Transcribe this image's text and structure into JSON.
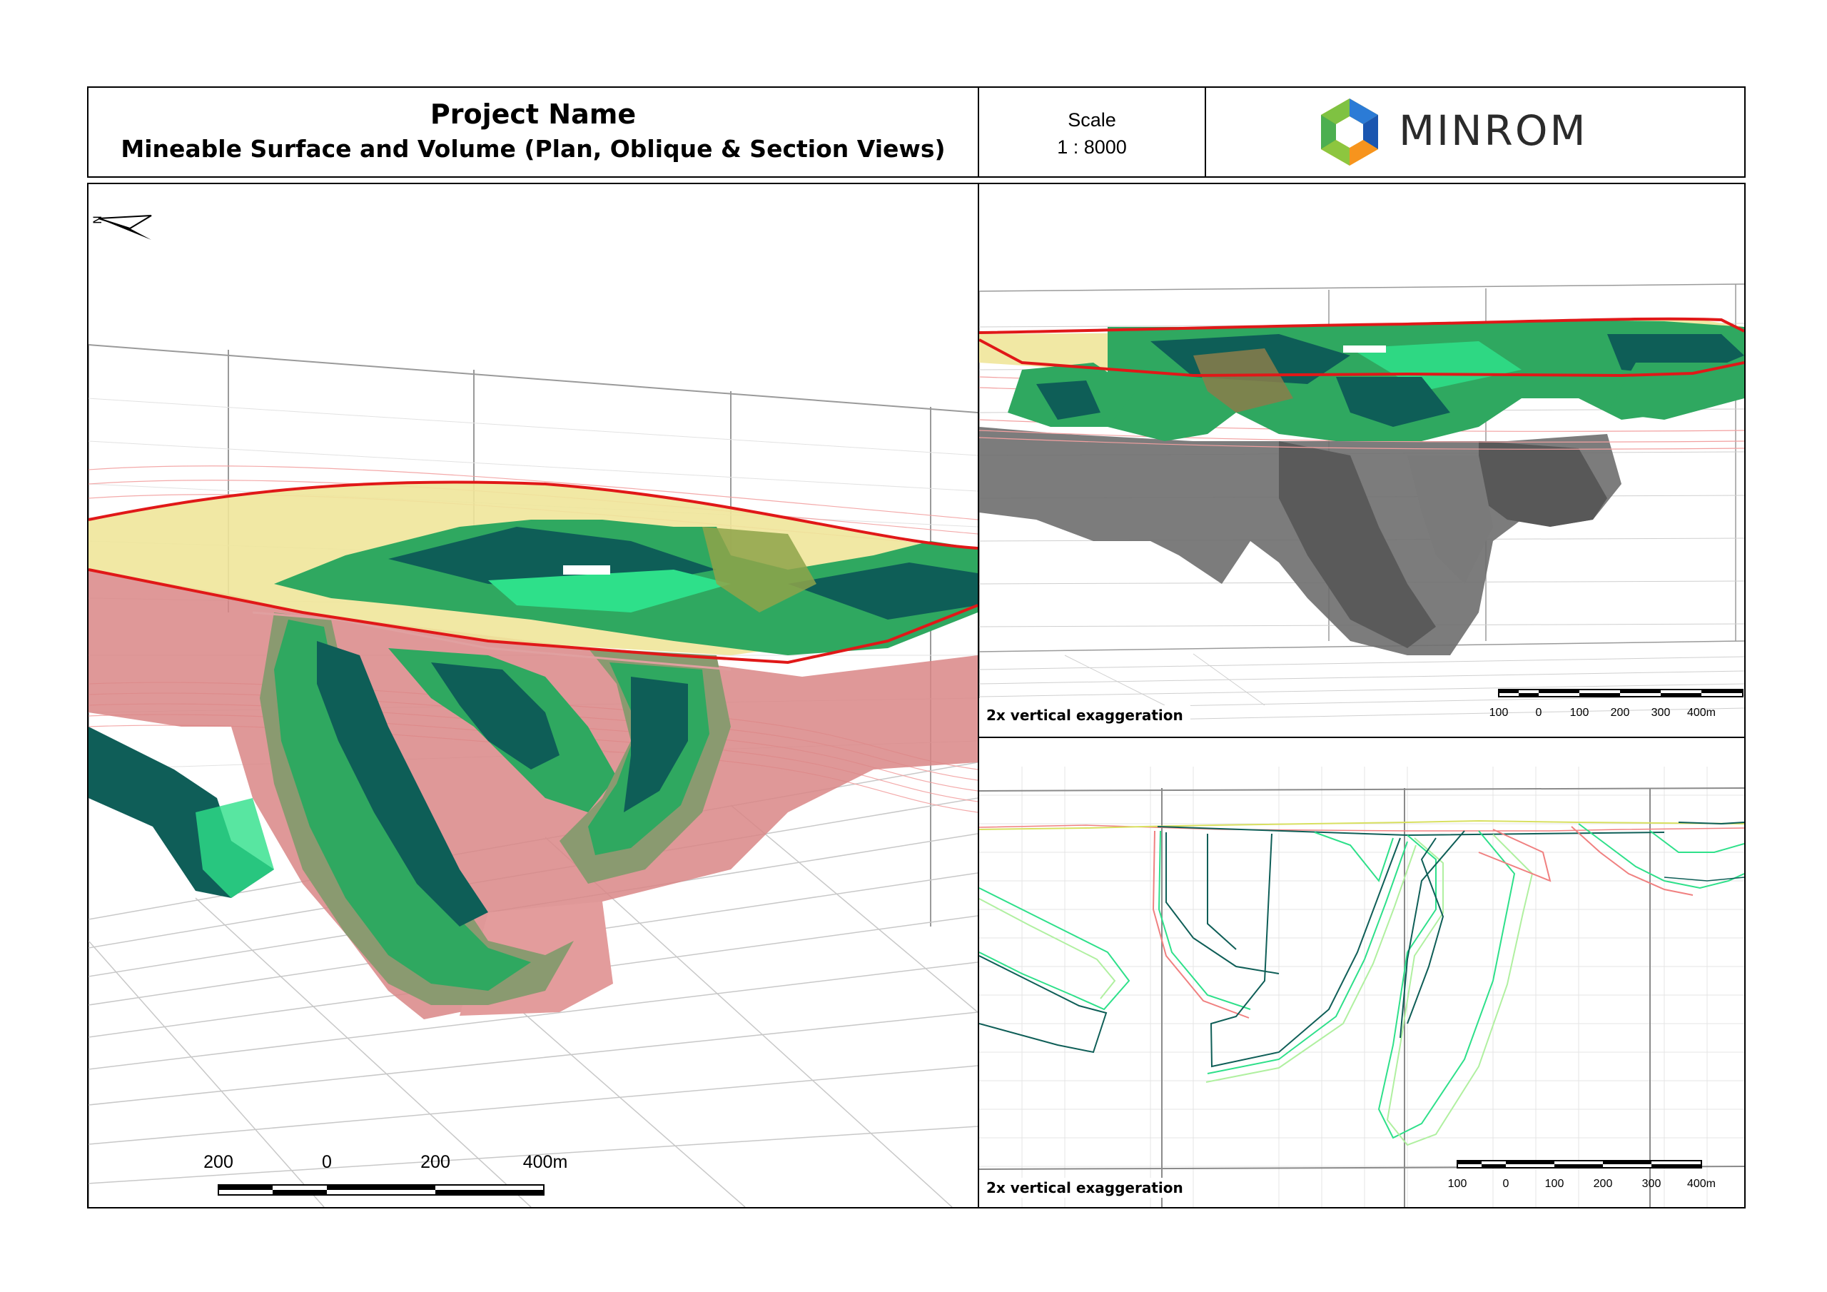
{
  "header": {
    "title": "Project Name",
    "subtitle": "Mineable Surface and Volume (Plan, Oblique & Section Views)",
    "scale_label": "Scale",
    "scale_value": "1 : 8000",
    "logo_text": "MINROM"
  },
  "oblique_view": {
    "north_label": "N",
    "scalebar_ticks": [
      "200",
      "0",
      "200",
      "400m"
    ]
  },
  "top_right_view": {
    "caption": "2x vertical exaggeration",
    "scalebar_ticks": [
      "100",
      "0",
      "100",
      "200",
      "300",
      "400m"
    ]
  },
  "bottom_right_view": {
    "caption": "2x vertical exaggeration",
    "scalebar_ticks": [
      "100",
      "0",
      "100",
      "200",
      "300",
      "400m"
    ]
  },
  "colors": {
    "surface_outline": "#e01818",
    "topo_fill": "#efe69a",
    "ore_green": "#2fa860",
    "ore_dark": "#0e5e57",
    "ore_light": "#2ee08a",
    "pink_volume": "#d47a7a",
    "grey_volume": "#707070"
  }
}
